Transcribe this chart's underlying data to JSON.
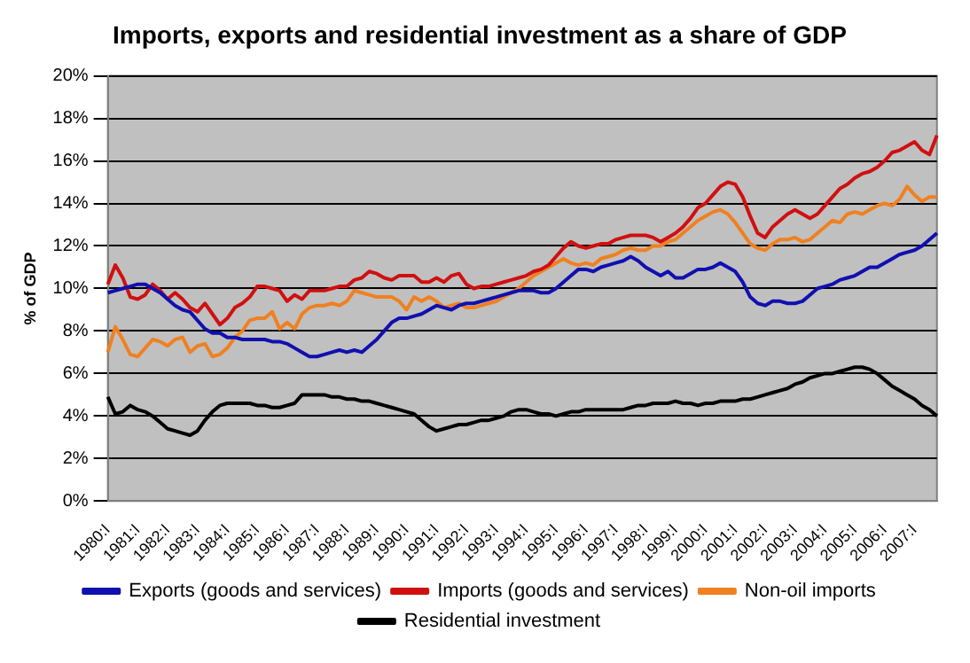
{
  "chart_data": {
    "type": "line",
    "title": "Imports, exports and residential investment as a share of GDP",
    "ylabel": "% of GDP",
    "categories": [
      "1980:I",
      null,
      null,
      null,
      "1981:I",
      null,
      null,
      null,
      "1982:I",
      null,
      null,
      null,
      "1983:I",
      null,
      null,
      null,
      "1984:I",
      null,
      null,
      null,
      "1985:I",
      null,
      null,
      null,
      "1986:I",
      null,
      null,
      null,
      "1987:I",
      null,
      null,
      null,
      "1988:I",
      null,
      null,
      null,
      "1989:I",
      null,
      null,
      null,
      "1990:I",
      null,
      null,
      null,
      "1991:I",
      null,
      null,
      null,
      "1992:I",
      null,
      null,
      null,
      "1993:I",
      null,
      null,
      null,
      "1994:I",
      null,
      null,
      null,
      "1995:I",
      null,
      null,
      null,
      "1996:I",
      null,
      null,
      null,
      "1997:I",
      null,
      null,
      null,
      "1998:I",
      null,
      null,
      null,
      "1999:I",
      null,
      null,
      null,
      "2000:I",
      null,
      null,
      null,
      "2001:I",
      null,
      null,
      null,
      "2002:I",
      null,
      null,
      null,
      "2003:I",
      null,
      null,
      null,
      "2004:I",
      null,
      null,
      null,
      "2005:I",
      null,
      null,
      null,
      "2006:I",
      null,
      null,
      null,
      "2007:I",
      null,
      null,
      null
    ],
    "series": [
      {
        "name": "Exports (goods and services)",
        "color": "#1010b0",
        "values": [
          9.8,
          9.9,
          10.0,
          10.1,
          10.2,
          10.2,
          10.0,
          9.8,
          9.5,
          9.2,
          9.0,
          8.9,
          8.5,
          8.1,
          7.9,
          7.9,
          7.7,
          7.7,
          7.6,
          7.6,
          7.6,
          7.6,
          7.5,
          7.5,
          7.4,
          7.2,
          7.0,
          6.8,
          6.8,
          6.9,
          7.0,
          7.1,
          7.0,
          7.1,
          7.0,
          7.3,
          7.6,
          8.0,
          8.4,
          8.6,
          8.6,
          8.7,
          8.8,
          9.0,
          9.2,
          9.1,
          9.0,
          9.2,
          9.3,
          9.3,
          9.4,
          9.5,
          9.6,
          9.7,
          9.8,
          9.9,
          9.9,
          9.9,
          9.8,
          9.8,
          10.0,
          10.3,
          10.6,
          10.9,
          10.9,
          10.8,
          11.0,
          11.1,
          11.2,
          11.3,
          11.5,
          11.3,
          11.0,
          10.8,
          10.6,
          10.8,
          10.5,
          10.5,
          10.7,
          10.9,
          10.9,
          11.0,
          11.2,
          11.0,
          10.8,
          10.3,
          9.6,
          9.3,
          9.2,
          9.4,
          9.4,
          9.3,
          9.3,
          9.4,
          9.7,
          10.0,
          10.1,
          10.2,
          10.4,
          10.5,
          10.6,
          10.8,
          11.0,
          11.0,
          11.2,
          11.4,
          11.6,
          11.7,
          11.8,
          12.0,
          12.3,
          12.6
        ]
      },
      {
        "name": "Imports (goods and services)",
        "color": "#d01010",
        "values": [
          10.2,
          11.1,
          10.5,
          9.6,
          9.5,
          9.7,
          10.2,
          9.9,
          9.5,
          9.8,
          9.5,
          9.1,
          8.9,
          9.3,
          8.8,
          8.3,
          8.6,
          9.1,
          9.3,
          9.6,
          10.1,
          10.1,
          10.0,
          9.9,
          9.4,
          9.7,
          9.5,
          9.9,
          9.9,
          9.9,
          10.0,
          10.1,
          10.1,
          10.4,
          10.5,
          10.8,
          10.7,
          10.5,
          10.4,
          10.6,
          10.6,
          10.6,
          10.3,
          10.3,
          10.5,
          10.3,
          10.6,
          10.7,
          10.2,
          10.0,
          10.1,
          10.1,
          10.2,
          10.3,
          10.4,
          10.5,
          10.6,
          10.8,
          10.9,
          11.1,
          11.5,
          11.9,
          12.2,
          12.0,
          11.9,
          12.0,
          12.1,
          12.1,
          12.3,
          12.4,
          12.5,
          12.5,
          12.5,
          12.4,
          12.2,
          12.4,
          12.6,
          12.9,
          13.3,
          13.8,
          14.0,
          14.4,
          14.8,
          15.0,
          14.9,
          14.3,
          13.4,
          12.6,
          12.4,
          12.9,
          13.2,
          13.5,
          13.7,
          13.5,
          13.3,
          13.5,
          13.9,
          14.3,
          14.7,
          14.9,
          15.2,
          15.4,
          15.5,
          15.7,
          16.0,
          16.4,
          16.5,
          16.7,
          16.9,
          16.5,
          16.3,
          17.2
        ]
      },
      {
        "name": "Non-oil imports",
        "color": "#f08020",
        "values": [
          7.0,
          8.2,
          7.6,
          6.9,
          6.8,
          7.2,
          7.6,
          7.5,
          7.3,
          7.6,
          7.7,
          7.0,
          7.3,
          7.4,
          6.8,
          6.9,
          7.2,
          7.7,
          8.0,
          8.5,
          8.6,
          8.6,
          8.9,
          8.1,
          8.4,
          8.1,
          8.8,
          9.1,
          9.2,
          9.2,
          9.3,
          9.2,
          9.4,
          9.9,
          9.8,
          9.7,
          9.6,
          9.6,
          9.6,
          9.4,
          9.0,
          9.6,
          9.4,
          9.6,
          9.4,
          9.1,
          9.2,
          9.3,
          9.1,
          9.1,
          9.2,
          9.3,
          9.4,
          9.6,
          9.8,
          10.0,
          10.3,
          10.6,
          10.8,
          11.0,
          11.2,
          11.4,
          11.2,
          11.1,
          11.2,
          11.1,
          11.4,
          11.5,
          11.6,
          11.8,
          11.9,
          11.8,
          11.8,
          12.0,
          12.0,
          12.2,
          12.3,
          12.6,
          12.9,
          13.2,
          13.4,
          13.6,
          13.7,
          13.5,
          13.1,
          12.6,
          12.1,
          11.9,
          11.8,
          12.1,
          12.3,
          12.3,
          12.4,
          12.2,
          12.3,
          12.6,
          12.9,
          13.2,
          13.1,
          13.5,
          13.6,
          13.5,
          13.7,
          13.9,
          14.0,
          13.9,
          14.2,
          14.8,
          14.4,
          14.1,
          14.3,
          14.3
        ]
      },
      {
        "name": "Residential investment",
        "color": "#000000",
        "values": [
          4.9,
          4.1,
          4.2,
          4.5,
          4.3,
          4.2,
          4.0,
          3.7,
          3.4,
          3.3,
          3.2,
          3.1,
          3.3,
          3.8,
          4.2,
          4.5,
          4.6,
          4.6,
          4.6,
          4.6,
          4.5,
          4.5,
          4.4,
          4.4,
          4.5,
          4.6,
          5.0,
          5.0,
          5.0,
          5.0,
          4.9,
          4.9,
          4.8,
          4.8,
          4.7,
          4.7,
          4.6,
          4.5,
          4.4,
          4.3,
          4.2,
          4.1,
          3.8,
          3.5,
          3.3,
          3.4,
          3.5,
          3.6,
          3.6,
          3.7,
          3.8,
          3.8,
          3.9,
          4.0,
          4.2,
          4.3,
          4.3,
          4.2,
          4.1,
          4.1,
          4.0,
          4.1,
          4.2,
          4.2,
          4.3,
          4.3,
          4.3,
          4.3,
          4.3,
          4.3,
          4.4,
          4.5,
          4.5,
          4.6,
          4.6,
          4.6,
          4.7,
          4.6,
          4.6,
          4.5,
          4.6,
          4.6,
          4.7,
          4.7,
          4.7,
          4.8,
          4.8,
          4.9,
          5.0,
          5.1,
          5.2,
          5.3,
          5.5,
          5.6,
          5.8,
          5.9,
          6.0,
          6.0,
          6.1,
          6.2,
          6.3,
          6.3,
          6.2,
          6.0,
          5.7,
          5.4,
          5.2,
          5.0,
          4.8,
          4.5,
          4.3,
          4.0
        ]
      }
    ],
    "ylim": [
      0,
      20
    ],
    "yticks": [
      {
        "value": 0,
        "label": "0%"
      },
      {
        "value": 2,
        "label": "2%"
      },
      {
        "value": 4,
        "label": "4%"
      },
      {
        "value": 6,
        "label": "6%"
      },
      {
        "value": 8,
        "label": "8%"
      },
      {
        "value": 10,
        "label": "10%"
      },
      {
        "value": 12,
        "label": "12%"
      },
      {
        "value": 14,
        "label": "14%"
      },
      {
        "value": 16,
        "label": "16%"
      },
      {
        "value": 18,
        "label": "18%"
      },
      {
        "value": 20,
        "label": "20%"
      }
    ],
    "grid": "y",
    "legend": "bottom",
    "marker": "none",
    "line_style": "solid"
  }
}
